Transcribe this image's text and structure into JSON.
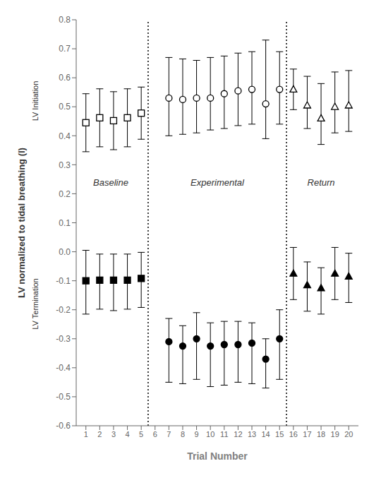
{
  "chart_data": {
    "type": "scatter",
    "xlabel": "Trial Number",
    "ylabel": "LV normalized to tidal breathing (l)",
    "y_group_labels": [
      "LV Initiation",
      "LV Termination"
    ],
    "annotations": [
      {
        "text": "Baseline",
        "x": 2.8,
        "y": 0.24
      },
      {
        "text": "Experimental",
        "x": 10.5,
        "y": 0.24
      },
      {
        "text": "Return",
        "x": 18.0,
        "y": 0.24
      }
    ],
    "vlines": [
      5.5,
      15.5
    ],
    "xlim": [
      0.3,
      20.7
    ],
    "xticks": [
      1,
      2,
      3,
      4,
      5,
      6,
      7,
      8,
      9,
      10,
      11,
      12,
      13,
      14,
      15,
      16,
      17,
      18,
      19,
      20
    ],
    "ylim": [
      -0.6,
      0.8
    ],
    "yticks": [
      -0.6,
      -0.5,
      -0.4,
      -0.3,
      -0.2,
      -0.1,
      {
        "value": 0,
        "label": "0.0"
      },
      0.1,
      0.2,
      0.3,
      0.4,
      0.5,
      0.6,
      0.7,
      0.8
    ],
    "grid": false,
    "series": [
      {
        "x": [
          1,
          2,
          3,
          4,
          5
        ],
        "values": [
          0.445,
          0.462,
          0.452,
          0.462,
          0.478
        ],
        "err_lo": [
          0.1,
          0.1,
          0.1,
          0.1,
          0.09
        ],
        "err_hi": [
          0.1,
          0.1,
          0.1,
          0.1,
          0.09
        ],
        "marker": "open_square",
        "color": "#000000"
      },
      {
        "x": [
          7,
          8,
          9,
          10,
          11,
          12,
          13,
          14,
          15
        ],
        "values": [
          0.53,
          0.525,
          0.53,
          0.53,
          0.545,
          0.555,
          0.56,
          0.51,
          0.56
        ],
        "err_lo": [
          0.13,
          0.12,
          0.12,
          0.11,
          0.12,
          0.12,
          0.12,
          0.12,
          0.12
        ],
        "err_hi": [
          0.14,
          0.14,
          0.13,
          0.14,
          0.13,
          0.13,
          0.13,
          0.22,
          0.13
        ],
        "marker": "open_circle",
        "color": "#000000"
      },
      {
        "x": [
          16,
          17,
          18,
          19,
          20
        ],
        "values": [
          0.56,
          0.505,
          0.46,
          0.5,
          0.505
        ],
        "err_lo": [
          0.07,
          0.08,
          0.09,
          0.09,
          0.09
        ],
        "err_hi": [
          0.07,
          0.1,
          0.12,
          0.12,
          0.12
        ],
        "marker": "open_triangle",
        "color": "#000000"
      },
      {
        "x": [
          1,
          2,
          3,
          4,
          5
        ],
        "values": [
          -0.1,
          -0.098,
          -0.098,
          -0.098,
          -0.092
        ],
        "err_lo": [
          0.115,
          0.1,
          0.105,
          0.1,
          0.1
        ],
        "err_hi": [
          0.105,
          0.09,
          0.09,
          0.09,
          0.09
        ],
        "marker": "square",
        "color": "#000000"
      },
      {
        "x": [
          7,
          8,
          9,
          10,
          11,
          12,
          13,
          14,
          15
        ],
        "values": [
          -0.31,
          -0.325,
          -0.3,
          -0.325,
          -0.32,
          -0.32,
          -0.315,
          -0.37,
          -0.3
        ],
        "err_lo": [
          0.14,
          0.13,
          0.14,
          0.14,
          0.14,
          0.13,
          0.14,
          0.1,
          0.14
        ],
        "err_hi": [
          0.08,
          0.07,
          0.09,
          0.08,
          0.08,
          0.08,
          0.07,
          0.07,
          0.1
        ],
        "marker": "circle",
        "color": "#000000"
      },
      {
        "x": [
          16,
          17,
          18,
          19,
          20
        ],
        "values": [
          -0.075,
          -0.115,
          -0.125,
          -0.075,
          -0.085
        ],
        "err_lo": [
          0.09,
          0.09,
          0.09,
          0.09,
          0.09
        ],
        "err_hi": [
          0.09,
          0.08,
          0.07,
          0.09,
          0.08
        ],
        "marker": "triangle",
        "color": "#000000"
      }
    ]
  }
}
